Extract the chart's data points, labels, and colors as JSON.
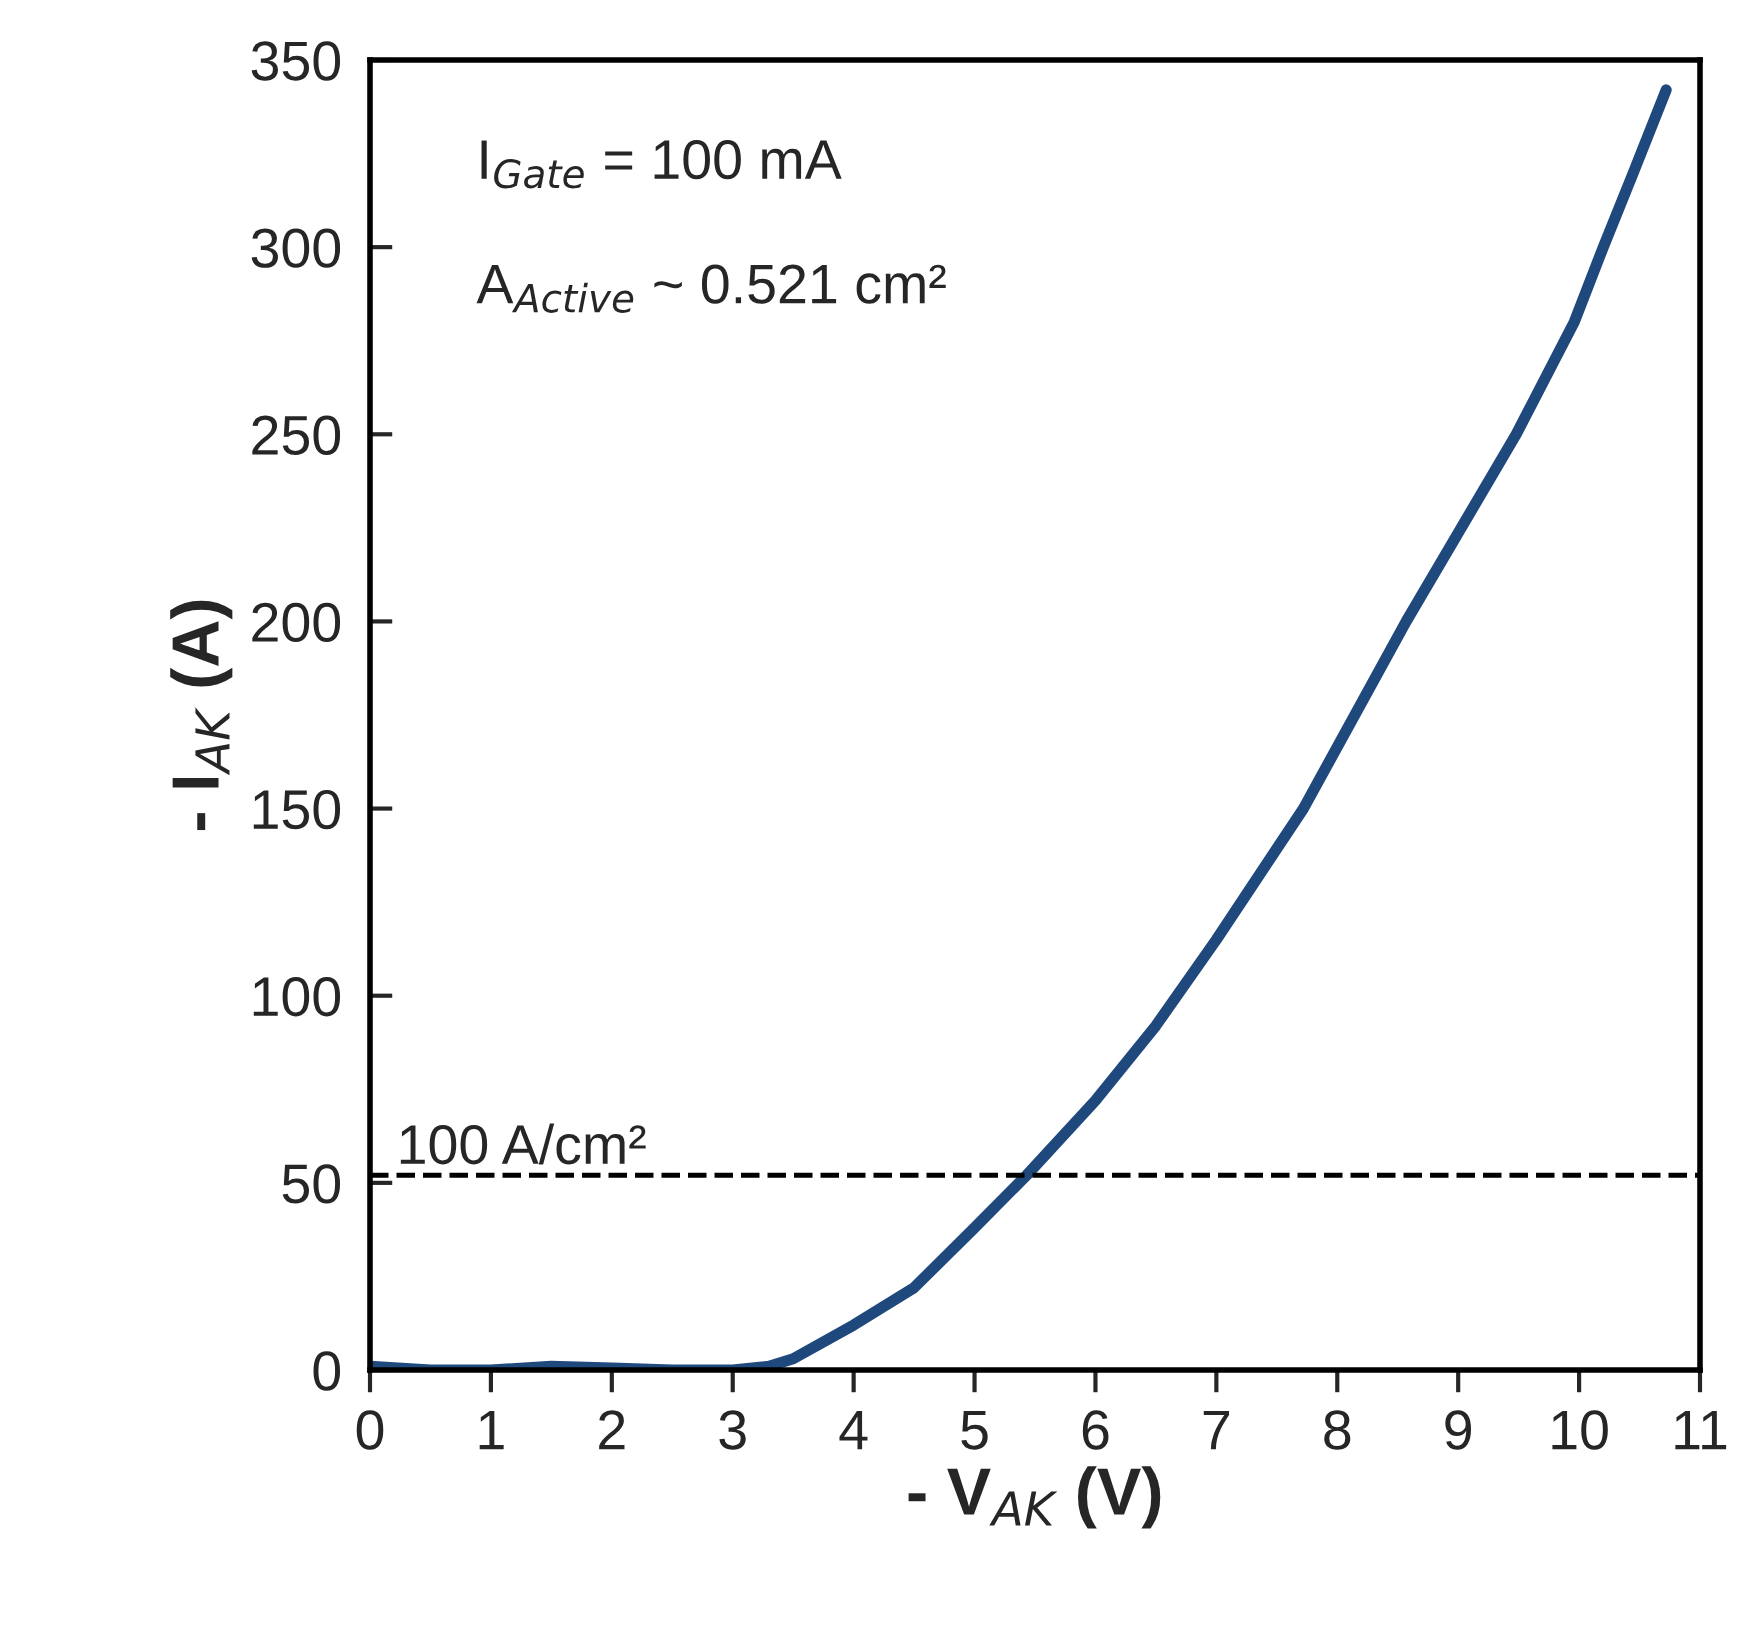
{
  "chart_data": {
    "type": "line",
    "xlabel": "- V$_{AK}$ (V)",
    "ylabel": "- I$_{AK}$ (A)",
    "annotations": [
      "I$_{Gate}$ = 100 mA",
      "A$_{Active}$ ~ 0.521 cm²"
    ],
    "series": [
      {
        "color": "#1f497d",
        "x": [
          0,
          0.5,
          1,
          1.5,
          2,
          2.5,
          3,
          3.3,
          3.5,
          4,
          4.5,
          5,
          5.43,
          6,
          6.5,
          7,
          7.72,
          8.57,
          9.48,
          9.96,
          10.2,
          10.45,
          10.72
        ],
        "values": [
          1,
          0,
          0,
          1,
          0.5,
          0,
          0,
          1,
          3,
          12,
          22,
          38,
          52,
          72,
          92,
          115,
          150,
          200,
          250,
          280,
          300,
          320,
          342
        ]
      }
    ],
    "ref_lines": [
      {
        "axis": "y",
        "value": 52,
        "label": "100 A/cm²",
        "color": "#000000",
        "line_style": "dashed"
      }
    ],
    "xlim": [
      0,
      11
    ],
    "xticks": [
      0,
      1,
      2,
      3,
      4,
      5,
      6,
      7,
      8,
      9,
      10,
      11
    ],
    "ylim": [
      0,
      350
    ],
    "yticks": [
      0,
      50,
      100,
      150,
      200,
      250,
      300,
      350
    ],
    "grid": false,
    "legend": false,
    "marker": "none",
    "line_style": "solid"
  }
}
